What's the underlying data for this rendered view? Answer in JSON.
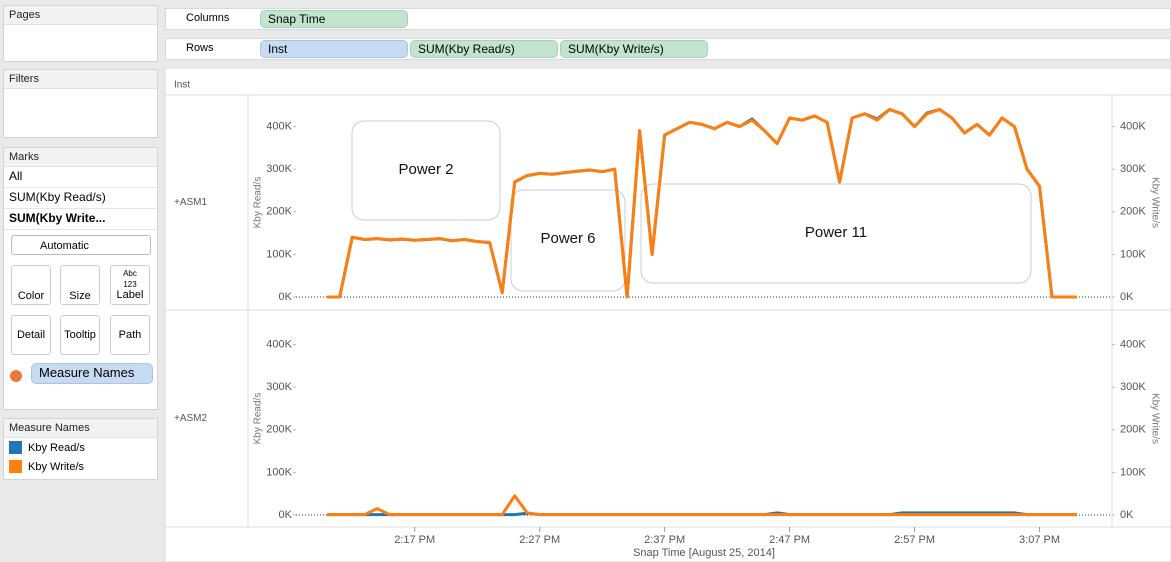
{
  "sidebar": {
    "pages": "Pages",
    "filters": "Filters",
    "marks": {
      "title": "Marks",
      "cards": [
        "All",
        "SUM(Kby Read/s)",
        "SUM(Kby Write..."
      ],
      "mark_type": "Automatic",
      "buttons": [
        "Color",
        "Size",
        "Label",
        "Detail",
        "Tooltip",
        "Path"
      ],
      "label_icon": [
        "Abc",
        "123"
      ],
      "pill": "Measure Names"
    },
    "legend_title": "Measure Names"
  },
  "shelves": {
    "columns": {
      "label": "Columns",
      "pills": [
        "Snap Time"
      ]
    },
    "rows": {
      "label": "Rows",
      "pills": [
        "Inst",
        "SUM(Kby Read/s)",
        "SUM(Kby Write/s)"
      ]
    }
  },
  "header": "Inst",
  "chart_data": [
    {
      "type": "line",
      "row_label": "+ASM1",
      "ylabel": "Kby Read/s",
      "y2label": "Kby Write/s",
      "annotations": [
        "Power 2",
        "Power 6",
        "Power 11"
      ],
      "x": [
        10,
        11,
        12,
        13,
        14,
        15,
        16,
        17,
        18,
        19,
        20,
        21,
        22,
        23,
        24,
        25,
        26,
        27,
        28,
        29,
        30,
        31,
        32,
        33,
        34,
        35,
        36,
        37,
        38,
        39,
        40,
        41,
        42,
        43,
        44,
        45,
        46,
        47,
        48,
        49,
        50,
        51,
        52,
        53,
        54,
        55,
        56,
        57,
        58,
        59,
        60,
        61,
        62,
        63,
        64,
        65,
        66,
        67,
        68,
        69,
        70
      ],
      "xlim": [
        7.5,
        72.8
      ],
      "ylim": [
        0,
        460000
      ],
      "y2lim": [
        0,
        460000
      ],
      "yticks": [
        {
          "value": 0,
          "label": "0K"
        },
        {
          "value": 100000,
          "label": "100K"
        },
        {
          "value": 200000,
          "label": "200K"
        },
        {
          "value": 300000,
          "label": "300K"
        },
        {
          "value": 400000,
          "label": "400K"
        }
      ],
      "y2ticks": [
        {
          "value": 0,
          "label": "0K"
        },
        {
          "value": 100000,
          "label": "100K"
        },
        {
          "value": 200000,
          "label": "200K"
        },
        {
          "value": 300000,
          "label": "300K"
        },
        {
          "value": 400000,
          "label": "400K"
        }
      ],
      "series": [
        {
          "name": "Kby Read/s",
          "color": "#1f77b4",
          "values": [
            0,
            0,
            140000,
            135000,
            137000,
            134000,
            136000,
            133000,
            135000,
            137000,
            132000,
            135000,
            130000,
            128000,
            10000,
            270000,
            285000,
            290000,
            288000,
            292000,
            295000,
            298000,
            294000,
            300000,
            0,
            390000,
            100000,
            380000,
            395000,
            410000,
            405000,
            395000,
            410000,
            400000,
            418000,
            390000,
            360000,
            420000,
            415000,
            425000,
            410000,
            270000,
            420000,
            430000,
            418000,
            440000,
            430000,
            400000,
            432000,
            440000,
            420000,
            385000,
            405000,
            380000,
            420000,
            400000,
            300000,
            260000,
            0,
            0,
            0
          ]
        },
        {
          "name": "Kby Write/s",
          "color": "#ff7f0e",
          "axis": "y2",
          "values": [
            0,
            0,
            140000,
            135000,
            137000,
            134000,
            136000,
            133000,
            135000,
            137000,
            132000,
            135000,
            130000,
            128000,
            10000,
            270000,
            285000,
            290000,
            288000,
            292000,
            295000,
            298000,
            294000,
            300000,
            0,
            390000,
            100000,
            380000,
            395000,
            410000,
            405000,
            395000,
            410000,
            400000,
            415000,
            390000,
            360000,
            420000,
            415000,
            425000,
            410000,
            270000,
            420000,
            430000,
            415000,
            440000,
            430000,
            400000,
            430000,
            440000,
            420000,
            385000,
            405000,
            380000,
            420000,
            400000,
            300000,
            260000,
            0,
            0,
            0
          ]
        }
      ]
    },
    {
      "type": "line",
      "row_label": "+ASM2",
      "ylabel": "Kby Read/s",
      "y2label": "Kby Write/s",
      "xlabel": "Snap Time [August 25, 2014]",
      "x": [
        10,
        11,
        12,
        13,
        14,
        15,
        16,
        17,
        18,
        19,
        20,
        21,
        22,
        23,
        24,
        25,
        26,
        27,
        28,
        29,
        30,
        31,
        32,
        33,
        34,
        35,
        36,
        37,
        38,
        39,
        40,
        41,
        42,
        43,
        44,
        45,
        46,
        47,
        48,
        49,
        50,
        51,
        52,
        53,
        54,
        55,
        56,
        57,
        58,
        59,
        60,
        61,
        62,
        63,
        64,
        65,
        66,
        67,
        68,
        69,
        70
      ],
      "xlim": [
        7.5,
        72.8
      ],
      "ylim": [
        0,
        460000
      ],
      "y2lim": [
        0,
        460000
      ],
      "xticks": [
        {
          "value": 17,
          "label": "2:17 PM"
        },
        {
          "value": 27,
          "label": "2:27 PM"
        },
        {
          "value": 37,
          "label": "2:37 PM"
        },
        {
          "value": 47,
          "label": "2:47 PM"
        },
        {
          "value": 57,
          "label": "2:57 PM"
        },
        {
          "value": 67,
          "label": "3:07 PM"
        }
      ],
      "yticks": [
        {
          "value": 0,
          "label": "0K"
        },
        {
          "value": 100000,
          "label": "100K"
        },
        {
          "value": 200000,
          "label": "200K"
        },
        {
          "value": 300000,
          "label": "300K"
        },
        {
          "value": 400000,
          "label": "400K"
        }
      ],
      "y2ticks": [
        {
          "value": 0,
          "label": "0K"
        },
        {
          "value": 100000,
          "label": "100K"
        },
        {
          "value": 200000,
          "label": "200K"
        },
        {
          "value": 300000,
          "label": "300K"
        },
        {
          "value": 400000,
          "label": "400K"
        }
      ],
      "series": [
        {
          "name": "Kby Read/s",
          "color": "#1f77b4",
          "values": [
            1000,
            1000,
            1000,
            1000,
            1000,
            1000,
            1000,
            1000,
            1000,
            1000,
            1000,
            1000,
            1000,
            1000,
            1000,
            1000,
            4000,
            1000,
            1000,
            1000,
            1000,
            1000,
            1000,
            1000,
            1000,
            1000,
            1000,
            1000,
            1000,
            1000,
            1000,
            1000,
            1000,
            1000,
            1000,
            1000,
            5000,
            1000,
            1000,
            1000,
            1000,
            1000,
            1000,
            1000,
            1000,
            1000,
            5000,
            5000,
            5000,
            5000,
            5000,
            5000,
            5000,
            5000,
            5000,
            5000,
            1000,
            1000,
            1000,
            1000,
            1000
          ]
        },
        {
          "name": "Kby Write/s",
          "color": "#ff7f0e",
          "axis": "y2",
          "values": [
            1000,
            1000,
            1000,
            1000,
            15000,
            1000,
            1000,
            1000,
            1000,
            1000,
            1000,
            1000,
            1000,
            1000,
            1000,
            45000,
            5000,
            1000,
            1000,
            1000,
            1000,
            1000,
            1000,
            1000,
            1000,
            1000,
            1000,
            1000,
            1000,
            1000,
            1000,
            1000,
            1000,
            1000,
            1000,
            1000,
            1000,
            1000,
            1000,
            1000,
            1000,
            1000,
            1000,
            1000,
            1000,
            1000,
            1000,
            1000,
            1000,
            1000,
            1000,
            1000,
            1000,
            1000,
            1000,
            1000,
            1000,
            1000,
            1000,
            1000,
            1000
          ]
        }
      ]
    }
  ]
}
